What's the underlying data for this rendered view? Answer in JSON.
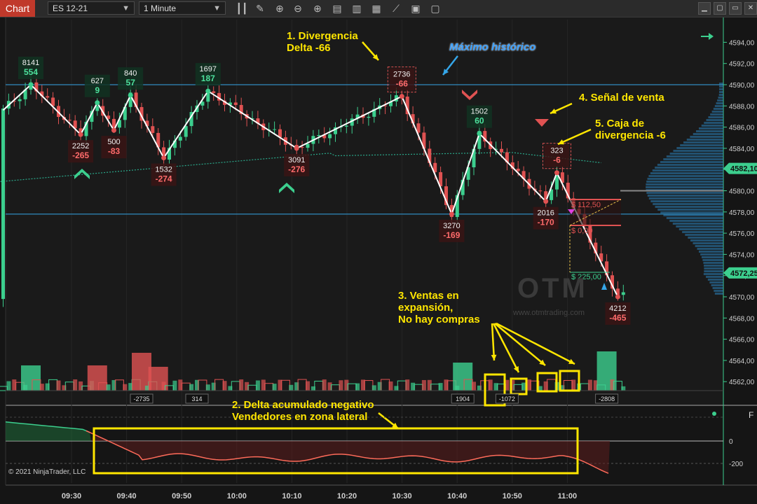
{
  "toolbar": {
    "tab_label": "Chart",
    "instrument": "ES 12-21",
    "timeframe": "1 Minute"
  },
  "chart_data": [
    {
      "type": "line",
      "xlabel": "",
      "ylabel": "",
      "ylim": [
        4560,
        4595
      ],
      "price_ticks": [
        "4594,00",
        "4592,00",
        "4590,00",
        "4588,00",
        "4586,00",
        "4584,00",
        "4582,00",
        "4580,00",
        "4578,00",
        "4576,00",
        "4574,00",
        "4572,00",
        "4570,00",
        "4568,00",
        "4566,00",
        "4564,00",
        "4562,00"
      ],
      "time_ticks": [
        "09:30",
        "09:40",
        "09:50",
        "10:00",
        "10:10",
        "10:20",
        "10:30",
        "10:40",
        "10:50",
        "11:00"
      ],
      "price_badges": [
        {
          "label": "4582,10",
          "price": 4582.1,
          "color": "#3ccf8e"
        },
        {
          "label": "4572,25",
          "price": 4572.25,
          "color": "#3ccf8e"
        }
      ],
      "horizontal_lines": [
        4590.0,
        4577.8
      ],
      "zigzag": [
        {
          "t": 0,
          "p": 4587.6
        },
        {
          "t": 5,
          "p": 4590.0,
          "vol": "8141",
          "delta": "554",
          "pos": "top"
        },
        {
          "t": 14,
          "p": 4585.3,
          "vol": "2252",
          "delta": "-265",
          "pos": "bottom"
        },
        {
          "t": 17,
          "p": 4588.3,
          "vol": "627",
          "delta": "9",
          "pos": "top"
        },
        {
          "t": 20,
          "p": 4585.7,
          "vol": "500",
          "delta": "-83",
          "pos": "bottom"
        },
        {
          "t": 23,
          "p": 4589.0,
          "vol": "840",
          "delta": "57",
          "pos": "top"
        },
        {
          "t": 29,
          "p": 4583.1,
          "vol": "1532",
          "delta": "-274",
          "pos": "bottom"
        },
        {
          "t": 37,
          "p": 4589.4,
          "vol": "1697",
          "delta": "187",
          "pos": "top"
        },
        {
          "t": 53,
          "p": 4584.0,
          "vol": "3091",
          "delta": "-276",
          "pos": "bottom"
        },
        {
          "t": 72,
          "p": 4588.9,
          "vol": "2736",
          "delta": "-66",
          "pos": "top",
          "boxed": true
        },
        {
          "t": 81,
          "p": 4577.8,
          "vol": "3270",
          "delta": "-169",
          "pos": "bottom"
        },
        {
          "t": 86,
          "p": 4585.4,
          "vol": "1502",
          "delta": "60",
          "pos": "top"
        },
        {
          "t": 98,
          "p": 4579.0,
          "vol": "2016",
          "delta": "-170",
          "pos": "bottom"
        },
        {
          "t": 100,
          "p": 4581.7,
          "vol": "323",
          "delta": "-6",
          "pos": "top",
          "boxed": true
        },
        {
          "t": 111,
          "p": 4570.0,
          "vol": "4212",
          "delta": "-465",
          "pos": "bottom"
        }
      ],
      "trade_labels": [
        "$ 112,50",
        "$ 0,00",
        "$ 225,00"
      ]
    },
    {
      "type": "bar",
      "volume_labels": [
        {
          "t": 25,
          "text": "-2735"
        },
        {
          "t": 35,
          "text": "314"
        },
        {
          "t": 83,
          "text": "1904"
        },
        {
          "t": 91,
          "text": "-1072"
        },
        {
          "t": 109,
          "text": "-2808"
        }
      ]
    },
    {
      "type": "line",
      "ylim": [
        -250,
        50
      ],
      "ticks": [
        "0",
        "-200"
      ]
    }
  ],
  "annotations": {
    "a1": "1. Divergencia\nDelta -66",
    "max": "Máximo histórico",
    "a4": "4. Señal de venta",
    "a5": "5. Caja de\ndivergencia -6",
    "a3": "3. Ventas en\nexpansión,\nNo hay compras",
    "a2": "2. Delta acumulado negativo\nVendedores en zona lateral"
  },
  "copyright": "© 2021 NinjaTrader, LLC",
  "watermark": "OTM",
  "watermark_url": "www.otmtrading.com",
  "panel_tags": [
    "F",
    "F"
  ],
  "colors": {
    "up": "#3ccf8e",
    "down": "#e05252",
    "zigzag": "#ffffff",
    "annotation": "#ffe600",
    "hline": "#35a6e8",
    "profile": "#2a7fb8"
  }
}
